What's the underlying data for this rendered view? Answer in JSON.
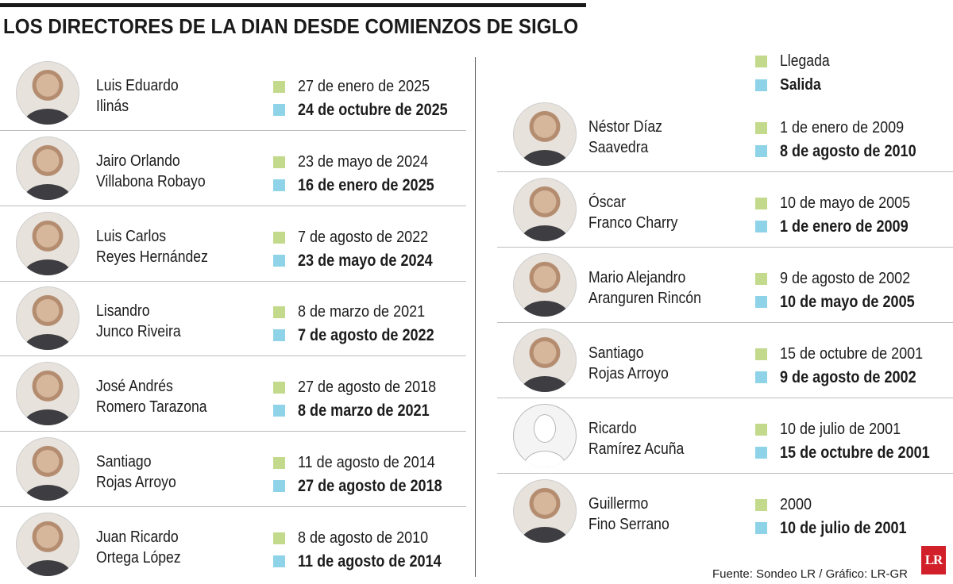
{
  "title": "LOS DIRECTORES DE LA DIAN DESDE COMIENZOS DE SIGLO",
  "legend": {
    "arrival": "Llegada",
    "departure": "Salida"
  },
  "colors": {
    "arrival": "#c3d98c",
    "departure": "#8fd3e8",
    "logo": "#d1202a"
  },
  "left_column": [
    {
      "name1": "Luis Eduardo",
      "name2": "Ilinás",
      "arrival": "27 de enero de 2025",
      "departure": "24 de octubre de 2025"
    },
    {
      "name1": "Jairo Orlando",
      "name2": "Villabona Robayo",
      "arrival": "23 de mayo de 2024",
      "departure": "16 de enero de 2025"
    },
    {
      "name1": "Luis Carlos",
      "name2": "Reyes Hernández",
      "arrival": "7 de agosto de 2022",
      "departure": "23 de mayo de 2024"
    },
    {
      "name1": "Lisandro",
      "name2": "Junco Riveira",
      "arrival": "8 de marzo de 2021",
      "departure": "7 de agosto de 2022"
    },
    {
      "name1": "José Andrés",
      "name2": "Romero Tarazona",
      "arrival": "27 de agosto de 2018",
      "departure": "8 de marzo de 2021"
    },
    {
      "name1": "Santiago",
      "name2": "Rojas Arroyo",
      "arrival": "11 de agosto de 2014",
      "departure": "27 de agosto de 2018"
    },
    {
      "name1": "Juan Ricardo",
      "name2": "Ortega López",
      "arrival": "8 de agosto de 2010",
      "departure": "11 de agosto de 2014"
    }
  ],
  "right_column": [
    {
      "name1": "Néstor Díaz",
      "name2": "Saavedra",
      "arrival": "1 de enero de 2009",
      "departure": "8 de agosto de 2010"
    },
    {
      "name1": "Óscar",
      "name2": "Franco Charry",
      "arrival": "10 de mayo de 2005",
      "departure": "1 de enero de 2009"
    },
    {
      "name1": "Mario Alejandro",
      "name2": "Aranguren Rincón",
      "arrival": "9 de agosto de 2002",
      "departure": "10 de mayo de 2005"
    },
    {
      "name1": "Santiago",
      "name2": "Rojas Arroyo",
      "arrival": "15 de octubre de 2001",
      "departure": "9 de agosto de 2002"
    },
    {
      "name1": "Ricardo",
      "name2": "Ramírez Acuña",
      "arrival": "10 de julio de 2001",
      "departure": "15 de octubre de 2001"
    },
    {
      "name1": "Guillermo",
      "name2": "Fino Serrano",
      "arrival": "2000",
      "departure": "10 de julio de 2001"
    }
  ],
  "footer": "Fuente: Sondeo LR / Gráfico: LR-GR",
  "logo_text": "LR"
}
